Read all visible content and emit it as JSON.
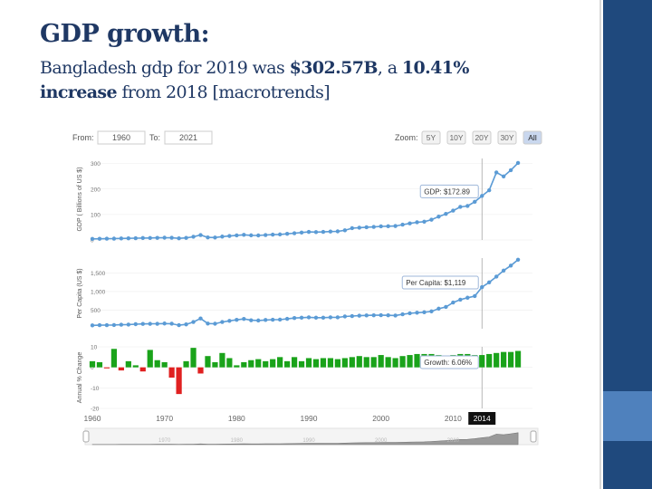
{
  "slide": {
    "title": "GDP growth:",
    "subtitle_line1_pre": "Bangladesh gdp for 2019 was ",
    "subtitle_line1_bold": "$302.57B",
    "subtitle_line1_mid": ", a ",
    "subtitle_line1_bold2": "10.41%",
    "subtitle_line2_bold": "increase",
    "subtitle_line2_rest": " from 2018 [macrotrends]"
  },
  "controls": {
    "from_label": "From:",
    "from_value": "1960",
    "to_label": "To:",
    "to_value": "2021",
    "zoom_label": "Zoom:",
    "zoom_options": [
      "5Y",
      "10Y",
      "20Y",
      "30Y",
      "All"
    ],
    "zoom_selected": "All"
  },
  "colors": {
    "line": "#5b9bd5",
    "positive_bar": "#1aa31a",
    "negative_bar": "#e02020",
    "accent_dark": "#1f497d",
    "accent_light": "#4f81bd"
  },
  "chart_data": [
    {
      "type": "line",
      "ylabel": "GDP ( Billions of US $)",
      "ylim": [
        0,
        320
      ],
      "yticks": [
        "0",
        "100",
        "200",
        "300"
      ],
      "tooltip": "GDP: $172.89",
      "x": [
        1960,
        1961,
        1962,
        1963,
        1964,
        1965,
        1966,
        1967,
        1968,
        1969,
        1970,
        1971,
        1972,
        1973,
        1974,
        1975,
        1976,
        1977,
        1978,
        1979,
        1980,
        1981,
        1982,
        1983,
        1984,
        1985,
        1986,
        1987,
        1988,
        1989,
        1990,
        1991,
        1992,
        1993,
        1994,
        1995,
        1996,
        1997,
        1998,
        1999,
        2000,
        2001,
        2002,
        2003,
        2004,
        2005,
        2006,
        2007,
        2008,
        2009,
        2010,
        2011,
        2012,
        2013,
        2014,
        2015,
        2016,
        2017,
        2018,
        2019
      ],
      "values": [
        4.3,
        4.8,
        5.1,
        5.3,
        5.9,
        6.3,
        7.0,
        7.6,
        7.9,
        8.4,
        8.9,
        8.7,
        6.3,
        8.1,
        12.5,
        19.4,
        10.1,
        9.7,
        13.3,
        15.6,
        18.1,
        20.2,
        18.2,
        17.8,
        19.5,
        20.9,
        21.8,
        24.3,
        26.6,
        29.2,
        31.6,
        30.9,
        31.7,
        33.2,
        33.8,
        37.9,
        46.4,
        48.2,
        50.0,
        51.3,
        53.4,
        53.9,
        54.7,
        60.2,
        65.1,
        69.4,
        71.8,
        79.6,
        91.6,
        102.5,
        115.3,
        129.9,
        133.4,
        149.9,
        172.9,
        195.1,
        265.2,
        249.7,
        274.0,
        302.6
      ]
    },
    {
      "type": "line",
      "ylabel": "Per Capita (US $)",
      "ylim": [
        0,
        1900
      ],
      "yticks": [
        "500",
        "1,000",
        "1,500"
      ],
      "tooltip": "Per Capita: $1,119",
      "x": [
        1960,
        1961,
        1962,
        1963,
        1964,
        1965,
        1966,
        1967,
        1968,
        1969,
        1970,
        1971,
        1972,
        1973,
        1974,
        1975,
        1976,
        1977,
        1978,
        1979,
        1980,
        1981,
        1982,
        1983,
        1984,
        1985,
        1986,
        1987,
        1988,
        1989,
        1990,
        1991,
        1992,
        1993,
        1994,
        1995,
        1996,
        1997,
        1998,
        1999,
        2000,
        2001,
        2002,
        2003,
        2004,
        2005,
        2006,
        2007,
        2008,
        2009,
        2010,
        2011,
        2012,
        2013,
        2014,
        2015,
        2016,
        2017,
        2018,
        2019
      ],
      "values": [
        89,
        95,
        97,
        99,
        107,
        112,
        122,
        129,
        131,
        133,
        140,
        135,
        96,
        116,
        180,
        275,
        139,
        134,
        180,
        211,
        239,
        264,
        228,
        222,
        235,
        243,
        244,
        265,
        287,
        298,
        306,
        297,
        296,
        307,
        305,
        330,
        340,
        350,
        357,
        362,
        363,
        360,
        355,
        388,
        415,
        432,
        444,
        466,
        539,
        585,
        705,
        781,
        834,
        878,
        1119,
        1248,
        1401,
        1564,
        1698,
        1856
      ]
    },
    {
      "type": "bar",
      "ylabel": "Annual % Change",
      "ylim": [
        -20,
        10
      ],
      "yticks": [
        "10",
        "0",
        "-10",
        "-20"
      ],
      "tooltip": "Growth: 6.06%",
      "x": [
        1960,
        1961,
        1962,
        1963,
        1964,
        1965,
        1966,
        1967,
        1968,
        1969,
        1970,
        1971,
        1972,
        1973,
        1974,
        1975,
        1976,
        1977,
        1978,
        1979,
        1980,
        1981,
        1982,
        1983,
        1984,
        1985,
        1986,
        1987,
        1988,
        1989,
        1990,
        1991,
        1992,
        1993,
        1994,
        1995,
        1996,
        1997,
        1998,
        1999,
        2000,
        2001,
        2002,
        2003,
        2004,
        2005,
        2006,
        2007,
        2008,
        2009,
        2010,
        2011,
        2012,
        2013,
        2014,
        2015,
        2016,
        2017,
        2018,
        2019
      ],
      "values": [
        3.0,
        2.5,
        -0.5,
        9.0,
        -1.5,
        3.0,
        1.0,
        -2.0,
        8.5,
        3.5,
        2.5,
        -5.0,
        -13.0,
        3.0,
        9.5,
        -3.0,
        5.5,
        2.5,
        7.0,
        4.5,
        1.0,
        2.5,
        3.5,
        4.0,
        3.0,
        4.0,
        5.0,
        3.0,
        5.0,
        3.0,
        4.5,
        4.0,
        4.5,
        4.5,
        4.0,
        4.5,
        5.0,
        5.5,
        5.0,
        5.0,
        6.0,
        5.0,
        4.5,
        5.5,
        6.0,
        6.5,
        6.5,
        6.5,
        6.0,
        5.5,
        6.0,
        6.5,
        6.5,
        6.0,
        6.0,
        6.5,
        7.0,
        7.5,
        7.5,
        8.0
      ]
    }
  ],
  "x_axis": {
    "ticks": [
      "1960",
      "1970",
      "1980",
      "1990",
      "2000",
      "2010"
    ],
    "highlight": "2014"
  },
  "navigator": {
    "ticks": [
      "1970",
      "1980",
      "1990",
      "2000",
      "2010"
    ]
  }
}
